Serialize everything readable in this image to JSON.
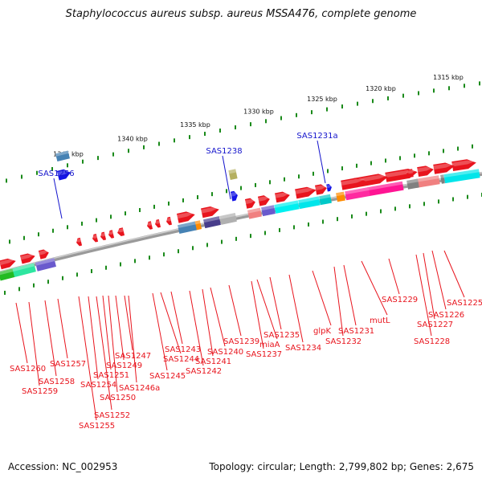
{
  "title": "Staphylococcus aureus subsp. aureus MSSA476, complete genome",
  "accession": "Accession: NC_002953",
  "topology": "Topology: circular; Length: 2,799,802 bp; Genes: 2,675",
  "colors": {
    "forward_gene": "#e8141d",
    "blue_gene": "#1414e6",
    "label_red": "#e8141d",
    "label_blue": "#1414cc",
    "backbone": "#8c8c8c",
    "ticks": "#1a8a1a"
  },
  "kbp_ticks": [
    "1315 kbp",
    "1320 kbp",
    "1325 kbp",
    "1330 kbp",
    "1335 kbp",
    "1340 kbp",
    "1345 kbp"
  ],
  "top_genes": [
    "SAS1231a",
    "SAS1238",
    "SAS1256"
  ],
  "bottom_genes": [
    "SAS1225",
    "SAS1226",
    "SAS1227",
    "SAS1228",
    "SAS1229",
    "mutL",
    "SAS1231",
    "SAS1232",
    "glpK",
    "SAS1234",
    "SAS1235",
    "miaA",
    "SAS1237",
    "SAS1239",
    "SAS1240",
    "SAS1241",
    "SAS1242",
    "SAS1243",
    "SAS1244",
    "SAS1245",
    "SAS1246a",
    "SAS1247",
    "SAS1249",
    "SAS1250",
    "SAS1251",
    "SAS1252",
    "SAS1254",
    "SAS1255",
    "SAS1257",
    "SAS1258",
    "SAS1259",
    "SAS1260"
  ]
}
